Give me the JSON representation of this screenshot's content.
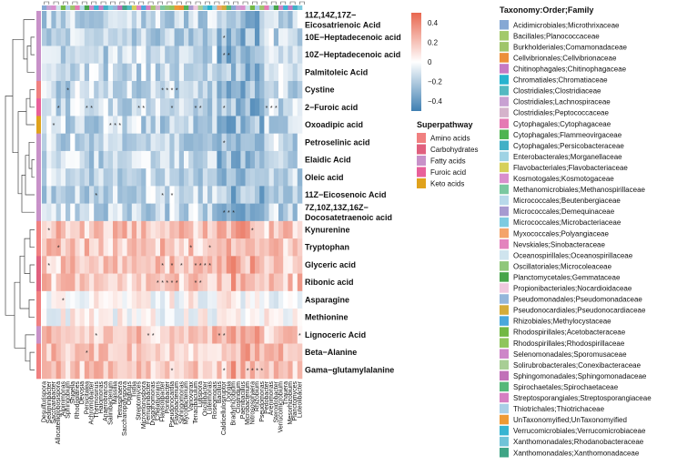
{
  "chart_data": {
    "type": "heatmap",
    "title": "",
    "rows": [
      {
        "label": "11Z,14Z,17Z−",
        "label2": "Eicosatrienoic Acid",
        "superpathway": "Fatty acids"
      },
      {
        "label": "10E−Heptadecenoic acid",
        "label2": "",
        "superpathway": "Fatty acids"
      },
      {
        "label": "10Z−Heptadecenoic acid",
        "label2": "",
        "superpathway": "Fatty acids"
      },
      {
        "label": "Palmitoleic Acid",
        "label2": "",
        "superpathway": "Fatty acids"
      },
      {
        "label": "Cystine",
        "label2": "",
        "superpathway": "Amino acids"
      },
      {
        "label": "2−Furoic acid",
        "label2": "",
        "superpathway": "Furoic acid"
      },
      {
        "label": "Oxoadipic acid",
        "label2": "",
        "superpathway": "Keto acids"
      },
      {
        "label": "Petroselinic acid",
        "label2": "",
        "superpathway": "Fatty acids"
      },
      {
        "label": "Elaidic Acid",
        "label2": "",
        "superpathway": "Fatty acids"
      },
      {
        "label": "Oleic acid",
        "label2": "",
        "superpathway": "Fatty acids"
      },
      {
        "label": "11Z−Eicosenoic Acid",
        "label2": "",
        "superpathway": "Fatty acids"
      },
      {
        "label": "7Z,10Z,13Z,16Z−",
        "label2": "Docosatetraenoic acid",
        "superpathway": "Fatty acids"
      },
      {
        "label": "Kynurenine",
        "label2": "",
        "superpathway": "Amino acids"
      },
      {
        "label": "Tryptophan",
        "label2": "",
        "superpathway": "Amino acids"
      },
      {
        "label": "Glyceric acid",
        "label2": "",
        "superpathway": "Carbohydrates"
      },
      {
        "label": "Ribonic acid",
        "label2": "",
        "superpathway": "Carbohydrates"
      },
      {
        "label": "Asparagine",
        "label2": "",
        "superpathway": "Amino acids"
      },
      {
        "label": "Methionine",
        "label2": "",
        "superpathway": "Amino acids"
      },
      {
        "label": "Lignoceric Acid",
        "label2": "",
        "superpathway": "Fatty acids"
      },
      {
        "label": "Beta−Alanine",
        "label2": "",
        "superpathway": "Amino acids"
      },
      {
        "label": "Gama−glutamylalanine",
        "label2": "",
        "superpathway": "Amino acids"
      }
    ],
    "columns": [
      "Desulfurispora",
      "Sediminibacter",
      "Saccharibacter",
      "Allocatelliglobosispora",
      "Alpinimonas",
      "Sphingobium",
      "Shigella",
      "Rhodoplanes",
      "Devosia",
      "Persicitalea",
      "Achromobacter",
      "Thermosinus",
      "Halomonas",
      "Anaerobranca",
      "Salinibacterium",
      "Massilia",
      "Tetrasphaera",
      "Saccharopolyspora",
      "Opitutus",
      "Tistlia",
      "Streptomyces",
      "Micromonospora",
      "Ferruginibacter",
      "Dysgonomonas",
      "Chelativorans",
      "Flavisolibacter",
      "Pontibacter",
      "Pseudonocardia",
      "Flavobacterium",
      "Sphingomonas",
      "Mycobacterium",
      "Variovorax",
      "Tenacibaculum",
      "Lutispora",
      "Oscillibacter",
      "Luteimonas",
      "Roseomonas",
      "Bacillus",
      "Caldicellulosiruptor",
      "Dongia",
      "Bradyrhizobium",
      "Clostridium",
      "Paenibacillus",
      "Microbacterium",
      "Nitrososphaera",
      "Rhizobium",
      "Pseudomonas",
      "Pedobacter",
      "Arenimonas",
      "Steroidobacter",
      "Verrucomicrobium",
      "Thauera",
      "Mesorhizobium",
      "Planctomyces",
      "Luteolibacter"
    ],
    "value_range": [
      -0.5,
      0.5
    ],
    "colorbar": {
      "ticks": [
        0.4,
        0.2,
        0,
        -0.2,
        -0.4
      ],
      "labels": [
        "0.4",
        "0.2",
        "0",
        "−0.2",
        "−0.4"
      ],
      "low": "#3f7fb2",
      "mid": "#ffffff",
      "high": "#e8674f"
    },
    "row_group_values": {
      "fatty_upper": -0.15,
      "aminos_lower": 0.18
    },
    "significance_marker": "*",
    "superpathway_legend": {
      "title": "Superpathway",
      "items": [
        {
          "label": "Amino acids",
          "color": "#f08080"
        },
        {
          "label": "Carbohydrates",
          "color": "#e0607e"
        },
        {
          "label": "Fatty acids",
          "color": "#c891c9"
        },
        {
          "label": "Furoic acid",
          "color": "#e8609a"
        },
        {
          "label": "Keto acids",
          "color": "#e0a21c"
        }
      ]
    },
    "taxonomy_legend": {
      "title": "Taxonomy:Order;Family",
      "items": [
        {
          "label": "Acidimicrobiales;Microthrixaceae",
          "color": "#86a8d4"
        },
        {
          "label": "Bacillales;Planococcaceae",
          "color": "#a3c96b"
        },
        {
          "label": "Burkholderiales;Comamonadaceae",
          "color": "#9fc56b"
        },
        {
          "label": "Cellvibrionales;Cellvibrionaceae",
          "color": "#ec8f3a"
        },
        {
          "label": "Chitinophagales;Chitinophagaceae",
          "color": "#c57ac4"
        },
        {
          "label": "Chromatiales;Chromatiaceae",
          "color": "#26b3cf"
        },
        {
          "label": "Clostridiales;Clostridiaceae",
          "color": "#53b9c1"
        },
        {
          "label": "Clostridiales;Lachnospiraceae",
          "color": "#c8a1d2"
        },
        {
          "label": "Clostridiales;Peptococcaceae",
          "color": "#d5b3cb"
        },
        {
          "label": "Cytophagales;Cytophagaceae",
          "color": "#e57ab3"
        },
        {
          "label": "Cytophagales;Flammeovirgaceae",
          "color": "#50b452"
        },
        {
          "label": "Cytophagales;Persicobacteraceae",
          "color": "#42b0c6"
        },
        {
          "label": "Enterobacterales;Morganellaceae",
          "color": "#9fd3e4"
        },
        {
          "label": "Flavobacteriales;Flavobacteriaceae",
          "color": "#d6d05a"
        },
        {
          "label": "Kosmotogales;Kosmotogaceae",
          "color": "#d98fcd"
        },
        {
          "label": "Methanomicrobiales;Methanospirillaceae",
          "color": "#7ac8a0"
        },
        {
          "label": "Micrococcales;Beutenbergiaceae",
          "color": "#b8d9ea"
        },
        {
          "label": "Micrococcales;Demequinaceae",
          "color": "#a79ad0"
        },
        {
          "label": "Micrococcales;Microbacteriaceae",
          "color": "#7ecbe0"
        },
        {
          "label": "Myxococcales;Polyangiaceae",
          "color": "#f4a46a"
        },
        {
          "label": "Nevskiales;Sinobacteraceae",
          "color": "#e383bd"
        },
        {
          "label": "Oceanospirillales;Oceanospirillaceae",
          "color": "#cfe4ee"
        },
        {
          "label": "Oscillatoriales;Microcoleaceae",
          "color": "#90c77a"
        },
        {
          "label": "Planctomycetales;Gemmataceae",
          "color": "#47a54a"
        },
        {
          "label": "Propionibacteriales;Nocardioidaceae",
          "color": "#efc8de"
        },
        {
          "label": "Pseudomonadales;Pseudomonadaceae",
          "color": "#94b6da"
        },
        {
          "label": "Pseudonocardiales;Pseudonocardiaceae",
          "color": "#d5ac3a"
        },
        {
          "label": "Rhizobiales;Methylocystaceae",
          "color": "#4aa8dc"
        },
        {
          "label": "Rhodospirillales;Acetobacteraceae",
          "color": "#72b843"
        },
        {
          "label": "Rhodospirillales;Rhodospirillaceae",
          "color": "#8fc55d"
        },
        {
          "label": "Selenomonadales;Sporomusaceae",
          "color": "#cd86c8"
        },
        {
          "label": "Solirubrobacterales;Conexibacteraceae",
          "color": "#a8ce95"
        },
        {
          "label": "Sphingomonadales;Sphingomonadaceae",
          "color": "#c171b8"
        },
        {
          "label": "Spirochaetales;Spirochaetaceae",
          "color": "#56b87a"
        },
        {
          "label": "Streptosporangiales;Streptosporangiaceae",
          "color": "#d67fc2"
        },
        {
          "label": "Thiotrichales;Thiotrichaceae",
          "color": "#a9cfe6"
        },
        {
          "label": "UnTaxonomyified;UnTaxonomyified",
          "color": "#ee9a35"
        },
        {
          "label": "Verrucomicrobiales;Verrucomicrobiaceae",
          "color": "#38b4d2"
        },
        {
          "label": "Xanthomonadales;Rhodanobacteraceae",
          "color": "#70c3d8"
        },
        {
          "label": "Xanthomonadales;Xanthomonadaceae",
          "color": "#3fa586"
        }
      ]
    }
  }
}
